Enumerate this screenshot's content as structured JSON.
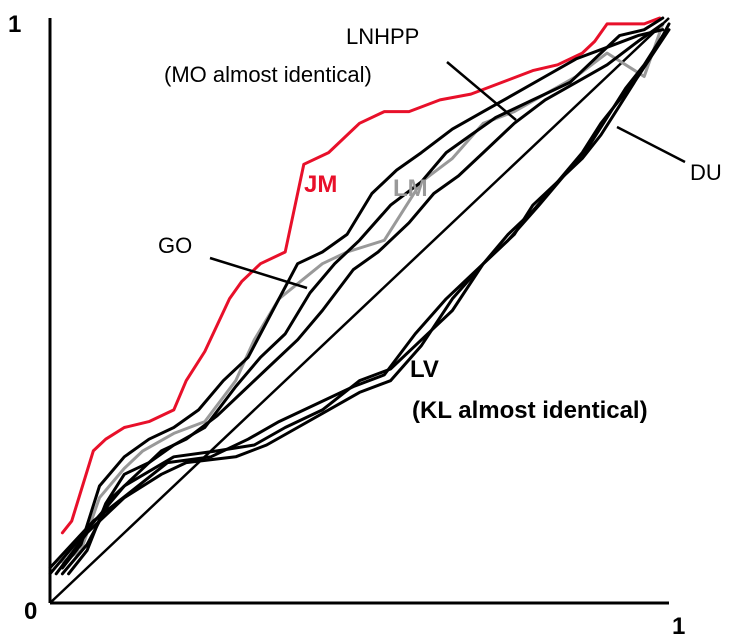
{
  "chart_data": {
    "type": "line",
    "title": "",
    "xlabel": "",
    "ylabel": "",
    "xlim": [
      0,
      1
    ],
    "ylim": [
      0,
      1
    ],
    "grid": false,
    "legend": "none",
    "ticks": {
      "x_zero": "0",
      "x_one": "1",
      "y_one": "1"
    },
    "diagonal": {
      "x": [
        0,
        1
      ],
      "y": [
        0,
        1
      ]
    },
    "series": [
      {
        "name": "JM",
        "color": "#e8102a",
        "x": [
          0.02,
          0.035,
          0.07,
          0.09,
          0.12,
          0.16,
          0.2,
          0.22,
          0.25,
          0.29,
          0.31,
          0.34,
          0.38,
          0.41,
          0.45,
          0.5,
          0.54,
          0.58,
          0.63,
          0.68,
          0.73,
          0.78,
          0.82,
          0.86,
          0.88,
          0.9,
          0.93,
          0.96,
          0.985
        ],
        "y": [
          0.12,
          0.14,
          0.26,
          0.28,
          0.3,
          0.31,
          0.33,
          0.38,
          0.43,
          0.52,
          0.55,
          0.58,
          0.6,
          0.75,
          0.77,
          0.82,
          0.84,
          0.84,
          0.86,
          0.87,
          0.89,
          0.91,
          0.92,
          0.94,
          0.96,
          0.99,
          0.99,
          0.99,
          1.0
        ]
      },
      {
        "name": "LM",
        "color": "#999999",
        "x": [
          0.02,
          0.05,
          0.08,
          0.12,
          0.15,
          0.2,
          0.25,
          0.3,
          0.33,
          0.37,
          0.44,
          0.48,
          0.54,
          0.6,
          0.65,
          0.7,
          0.75,
          0.8,
          0.85,
          0.9,
          0.96,
          0.99
        ],
        "y": [
          0.07,
          0.09,
          0.18,
          0.23,
          0.26,
          0.29,
          0.31,
          0.38,
          0.45,
          0.52,
          0.58,
          0.6,
          0.62,
          0.72,
          0.76,
          0.82,
          0.84,
          0.87,
          0.9,
          0.94,
          0.9,
          0.99
        ]
      },
      {
        "name": "GO",
        "color": "#000000",
        "x": [
          0.02,
          0.05,
          0.08,
          0.12,
          0.16,
          0.2,
          0.24,
          0.28,
          0.32,
          0.36,
          0.4,
          0.44,
          0.48,
          0.52,
          0.56,
          0.6,
          0.65,
          0.7,
          0.75,
          0.8,
          0.85,
          0.9,
          0.95,
          0.99
        ],
        "y": [
          0.06,
          0.1,
          0.2,
          0.25,
          0.28,
          0.3,
          0.33,
          0.38,
          0.42,
          0.5,
          0.58,
          0.6,
          0.63,
          0.7,
          0.74,
          0.77,
          0.81,
          0.84,
          0.87,
          0.9,
          0.93,
          0.95,
          0.97,
          0.98
        ]
      },
      {
        "name": "LNHPP",
        "color": "#000000",
        "x": [
          0.03,
          0.06,
          0.09,
          0.12,
          0.16,
          0.2,
          0.25,
          0.3,
          0.34,
          0.38,
          0.42,
          0.46,
          0.5,
          0.55,
          0.6,
          0.64,
          0.68,
          0.72,
          0.78,
          0.84,
          0.88,
          0.92,
          0.96,
          0.99
        ],
        "y": [
          0.05,
          0.09,
          0.17,
          0.22,
          0.24,
          0.27,
          0.3,
          0.37,
          0.42,
          0.46,
          0.53,
          0.58,
          0.62,
          0.68,
          0.72,
          0.77,
          0.8,
          0.83,
          0.86,
          0.89,
          0.93,
          0.97,
          0.98,
          1.0
        ]
      },
      {
        "name": "MO",
        "color": "#000000",
        "x": [
          0.02,
          0.06,
          0.1,
          0.14,
          0.18,
          0.22,
          0.27,
          0.31,
          0.35,
          0.4,
          0.44,
          0.49,
          0.53,
          0.58,
          0.62,
          0.66,
          0.7,
          0.75,
          0.8,
          0.85,
          0.9,
          0.95,
          0.99
        ],
        "y": [
          0.05,
          0.1,
          0.18,
          0.22,
          0.26,
          0.28,
          0.32,
          0.36,
          0.4,
          0.45,
          0.5,
          0.57,
          0.6,
          0.65,
          0.7,
          0.73,
          0.77,
          0.82,
          0.86,
          0.89,
          0.92,
          0.96,
          0.99
        ]
      },
      {
        "name": "DU",
        "color": "#000000",
        "x": [
          0.01,
          0.06,
          0.12,
          0.18,
          0.22,
          0.3,
          0.35,
          0.4,
          0.45,
          0.5,
          0.55,
          0.6,
          0.65,
          0.7,
          0.74,
          0.78,
          0.82,
          0.86,
          0.89,
          0.92,
          0.95,
          0.975,
          1.0
        ],
        "y": [
          0.05,
          0.12,
          0.18,
          0.22,
          0.24,
          0.25,
          0.27,
          0.3,
          0.33,
          0.36,
          0.38,
          0.44,
          0.52,
          0.58,
          0.63,
          0.67,
          0.72,
          0.77,
          0.82,
          0.86,
          0.9,
          0.94,
          0.98
        ]
      },
      {
        "name": "LV",
        "color": "#000000",
        "x": [
          0.0,
          0.08,
          0.12,
          0.2,
          0.27,
          0.33,
          0.38,
          0.44,
          0.5,
          0.55,
          0.6,
          0.65,
          0.7,
          0.75,
          0.78,
          0.82,
          0.86,
          0.89,
          0.92,
          0.95,
          0.98,
          1.0
        ],
        "y": [
          0.05,
          0.15,
          0.2,
          0.25,
          0.26,
          0.27,
          0.3,
          0.33,
          0.38,
          0.4,
          0.45,
          0.5,
          0.58,
          0.63,
          0.68,
          0.72,
          0.76,
          0.8,
          0.85,
          0.9,
          0.95,
          0.99
        ]
      },
      {
        "name": "KL",
        "color": "#000000",
        "x": [
          0.0,
          0.07,
          0.13,
          0.19,
          0.26,
          0.32,
          0.37,
          0.43,
          0.49,
          0.54,
          0.59,
          0.64,
          0.69,
          0.74,
          0.79,
          0.83,
          0.87,
          0.9,
          0.93,
          0.96,
          0.99
        ],
        "y": [
          0.06,
          0.14,
          0.19,
          0.24,
          0.25,
          0.28,
          0.31,
          0.34,
          0.37,
          0.39,
          0.46,
          0.52,
          0.57,
          0.62,
          0.68,
          0.73,
          0.78,
          0.83,
          0.88,
          0.92,
          0.97
        ]
      }
    ],
    "annotations": {
      "lnhpp": "LNHPP",
      "mo_note": "(MO almost identical)",
      "jm": "JM",
      "lm": "LM",
      "go": "GO",
      "du": "DU",
      "lv": "LV",
      "kl_note": "(KL almost identical)"
    }
  }
}
